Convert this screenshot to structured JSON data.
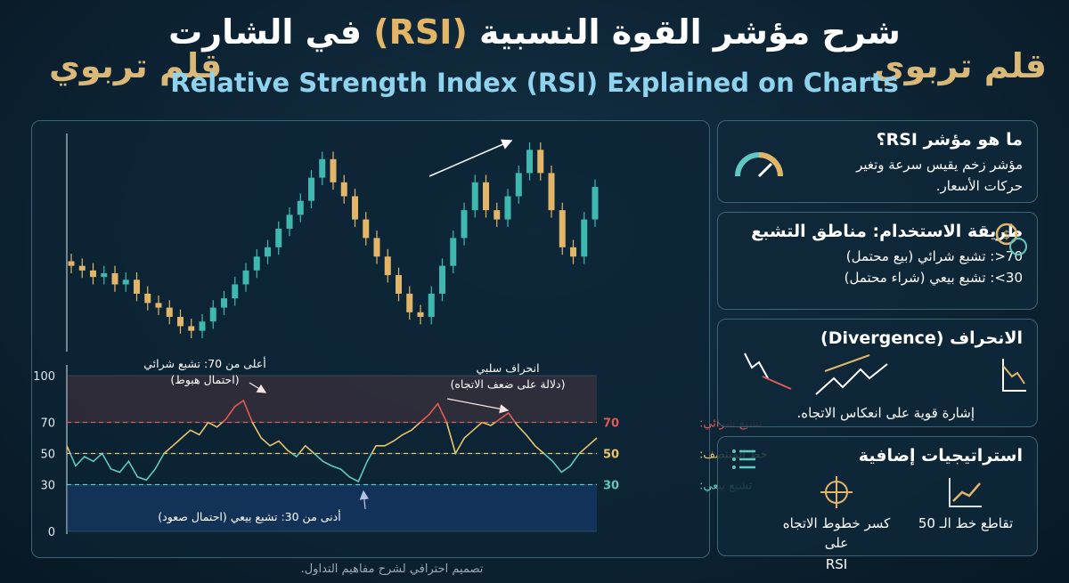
{
  "header": {
    "brand_left": "قلم تربوي",
    "brand_right": "قلم تربوي",
    "title_parts": [
      "شرح مؤشر القوة النسبية",
      "(RSI)",
      "في الشارت"
    ],
    "subtitle": "Relative Strength Index (RSI) Explained on Charts"
  },
  "chart_data": [
    {
      "type": "candlestick",
      "up_color": "#3fb8b0",
      "down_color": "#e2b66a",
      "open": [
        105,
        100,
        95,
        88,
        92,
        80,
        85,
        70,
        60,
        55,
        45,
        35,
        30,
        40,
        55,
        65,
        80,
        95,
        110,
        120,
        140,
        155,
        170,
        195,
        215,
        190,
        175,
        150,
        130,
        110,
        90,
        70,
        50,
        45,
        70,
        100,
        130,
        160,
        190,
        160,
        150,
        175,
        200,
        225,
        200,
        160,
        120,
        110,
        150
      ],
      "high": [
        113,
        108,
        103,
        100,
        100,
        93,
        93,
        78,
        68,
        63,
        53,
        43,
        48,
        63,
        73,
        88,
        103,
        118,
        128,
        148,
        163,
        178,
        203,
        223,
        223,
        198,
        183,
        158,
        138,
        118,
        98,
        78,
        58,
        78,
        108,
        138,
        168,
        198,
        198,
        168,
        183,
        208,
        233,
        233,
        208,
        168,
        128,
        158,
        193
      ],
      "low": [
        92,
        87,
        80,
        80,
        72,
        72,
        62,
        52,
        47,
        37,
        27,
        22,
        22,
        32,
        47,
        57,
        72,
        87,
        102,
        112,
        132,
        147,
        162,
        187,
        182,
        167,
        142,
        122,
        102,
        82,
        62,
        42,
        37,
        37,
        62,
        92,
        122,
        152,
        152,
        142,
        142,
        167,
        192,
        192,
        152,
        112,
        102,
        102,
        142
      ],
      "close": [
        100,
        95,
        88,
        92,
        80,
        85,
        70,
        60,
        55,
        45,
        35,
        30,
        40,
        55,
        65,
        80,
        95,
        110,
        120,
        140,
        155,
        170,
        195,
        215,
        190,
        175,
        150,
        130,
        110,
        90,
        70,
        50,
        45,
        70,
        100,
        130,
        160,
        190,
        160,
        150,
        175,
        200,
        225,
        200,
        160,
        120,
        110,
        150,
        185
      ]
    },
    {
      "type": "line",
      "color": "#e8c56a",
      "values": [
        55,
        42,
        48,
        45,
        50,
        40,
        38,
        45,
        35,
        33,
        40,
        50,
        55,
        60,
        65,
        62,
        70,
        67,
        72,
        80,
        84,
        70,
        60,
        55,
        58,
        52,
        48,
        55,
        50,
        45,
        42,
        40,
        35,
        32,
        45,
        55,
        55,
        58,
        62,
        65,
        70,
        75,
        82,
        70,
        50,
        60,
        65,
        70,
        68,
        72,
        76,
        68,
        62,
        55,
        50,
        45,
        38,
        42,
        50,
        55,
        60
      ],
      "ylim": [
        0,
        100
      ],
      "yticks": [
        0,
        30,
        50,
        70,
        100
      ],
      "grid": true,
      "reference_lines": [
        {
          "label": "تشبع شرائي:",
          "value": 70,
          "color": "#e05a55"
        },
        {
          "label": "خط المنتصف:",
          "value": 50,
          "color": "#e8c56a"
        },
        {
          "label": "تشبع بيعي:",
          "value": 30,
          "color": "#5fc8c0"
        }
      ],
      "annotations": [
        {
          "lines": [
            "أعلى من 70: تشبع شرائي",
            "(احتمال هبوط)"
          ]
        },
        {
          "lines": [
            "انحراف سلبي",
            "(دلالة على ضعف الاتجاه)"
          ]
        },
        {
          "lines": [
            "أدنى من 30: تشبع بيعي (احتمال صعود)"
          ]
        }
      ]
    }
  ],
  "cards": [
    {
      "title": "ما هو مؤشر RSI؟",
      "lines": [
        "مؤشر زخم يقيس سرعة وتغير",
        "حركات الأسعار."
      ]
    },
    {
      "title": "طريقة الاستخدام: مناطق التشبع",
      "lines": [
        "‎>70: تشبع شرائي (بيع محتمل)",
        "‎<30: تشبع بيعي (شراء محتمل)"
      ]
    },
    {
      "title": "الانحراف (Divergence)",
      "lines": [
        "إشارة قوية على انعكاس الاتجاه."
      ]
    },
    {
      "title": "استراتيجيات إضافية",
      "items": [
        [
          "تقاطع خط الـ 50"
        ],
        [
          "كسر خطوط الاتجاه على",
          "RSI"
        ]
      ]
    }
  ],
  "footer": "تصميم احترافي لشرح مفاهيم التداول."
}
